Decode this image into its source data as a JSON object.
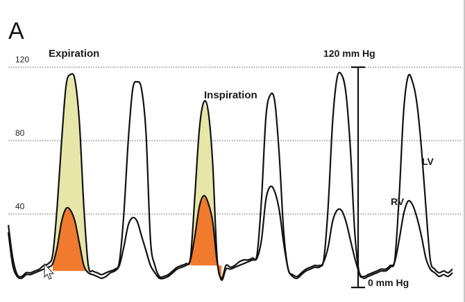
{
  "panel_label": "A",
  "colors": {
    "lv_fill": "#e6e6a8",
    "rv_fill": "#f07a2e",
    "trace": "#111111",
    "grid": "#555555"
  },
  "annotations": {
    "expiration": "Expiration",
    "inspiration": "Inspiration",
    "scale_top": "120 mm Hg",
    "scale_bottom": "0 mm Hg",
    "lv": "LV",
    "rv": "RV"
  },
  "chart_data": {
    "type": "line",
    "title": "",
    "xlabel": "",
    "ylabel": "",
    "ylim": [
      0,
      120
    ],
    "yticks": [
      "120",
      "80",
      "40"
    ],
    "ytick_values": [
      120,
      80,
      40
    ],
    "grid": "horizontal dotted lines at 120, 80 and 40",
    "x": [
      0,
      1,
      2,
      3,
      4,
      5,
      6,
      7,
      8,
      9,
      10,
      11,
      12,
      13,
      14,
      15,
      16,
      17,
      18,
      19,
      20,
      21,
      22,
      23,
      24,
      25,
      26,
      27,
      28,
      29,
      30,
      31,
      32,
      33,
      34,
      35,
      36,
      37,
      38,
      39,
      40,
      41,
      42,
      43,
      44,
      45,
      46,
      47,
      48,
      49,
      50,
      51,
      52,
      53,
      54,
      55,
      56,
      57,
      58,
      59,
      60,
      61,
      62,
      63,
      64,
      65,
      66,
      67,
      68,
      69,
      70,
      71,
      72,
      73,
      74,
      75,
      76,
      77,
      78,
      79,
      80,
      81,
      82,
      83,
      84,
      85,
      86,
      87,
      88,
      89,
      90,
      91,
      92,
      93,
      94,
      95,
      96,
      97,
      98,
      99,
      100
    ],
    "series": [
      {
        "name": "LV",
        "values": [
          34,
          16,
          7,
          6,
          8,
          8,
          9,
          10,
          12,
          13,
          18,
          44,
          80,
          110,
          116,
          113,
          90,
          44,
          12,
          9,
          8,
          7,
          8,
          9,
          10,
          14,
          40,
          80,
          108,
          112,
          108,
          84,
          26,
          12,
          6,
          6,
          7,
          9,
          11,
          12,
          13,
          16,
          50,
          86,
          101,
          96,
          68,
          16,
          5,
          12,
          11,
          12,
          14,
          15,
          15,
          16,
          18,
          48,
          93,
          105,
          101,
          72,
          30,
          10,
          7,
          6,
          8,
          10,
          11,
          12,
          12,
          15,
          44,
          90,
          114,
          116,
          106,
          76,
          30,
          8,
          6,
          7,
          8,
          9,
          10,
          10,
          12,
          15,
          50,
          96,
          115,
          112,
          100,
          76,
          44,
          15,
          10,
          8,
          9,
          8,
          10
        ]
      },
      {
        "name": "RV",
        "values": [
          30,
          12,
          6,
          5,
          7,
          7,
          8,
          9,
          10,
          11,
          13,
          22,
          36,
          43,
          42,
          36,
          24,
          12,
          8,
          7,
          6,
          5,
          6,
          8,
          9,
          12,
          22,
          34,
          38,
          36,
          28,
          20,
          12,
          8,
          5,
          5,
          6,
          8,
          10,
          11,
          12,
          15,
          28,
          44,
          50,
          46,
          36,
          14,
          4,
          10,
          10,
          11,
          12,
          13,
          14,
          15,
          16,
          26,
          48,
          55,
          52,
          42,
          24,
          10,
          6,
          5,
          7,
          9,
          10,
          11,
          11,
          14,
          22,
          36,
          42,
          42,
          36,
          26,
          16,
          8,
          5,
          6,
          7,
          8,
          9,
          9,
          11,
          14,
          26,
          40,
          47,
          45,
          38,
          28,
          16,
          10,
          8,
          6,
          7,
          6,
          8
        ]
      }
    ],
    "shaded_regions": [
      {
        "name": "expiration LV",
        "series": "LV",
        "x_range": [
          10,
          18
        ],
        "base": 9,
        "color": "#e6e6a8"
      },
      {
        "name": "expiration RV",
        "series": "RV",
        "x_range": [
          10,
          18
        ],
        "base": 9,
        "color": "#f07a2e"
      },
      {
        "name": "inspiration LV",
        "series": "LV",
        "x_range": [
          41,
          48
        ],
        "base": 12,
        "color": "#e6e6a8"
      },
      {
        "name": "inspiration RV",
        "series": "RV",
        "x_range": [
          41,
          48
        ],
        "base": 12,
        "color": "#f07a2e"
      }
    ]
  }
}
